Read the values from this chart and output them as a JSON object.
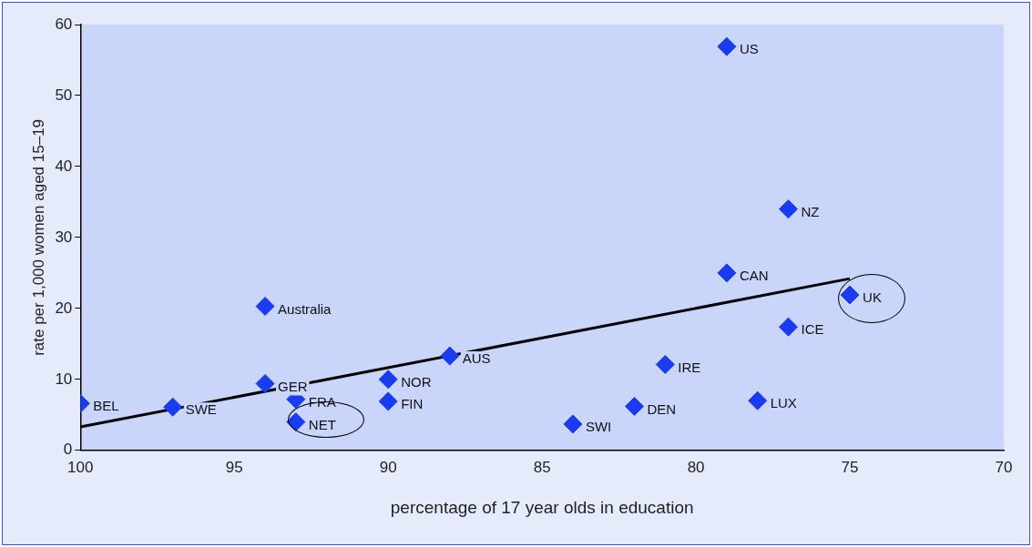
{
  "chart_data": {
    "type": "scatter",
    "xlabel": "percentage of 17 year olds in education",
    "ylabel": "rate per 1,000 women aged 15–19",
    "xlim": [
      100,
      70
    ],
    "xticks": [
      100,
      95,
      90,
      85,
      80,
      75,
      70
    ],
    "ylim": [
      0,
      60
    ],
    "yticks": [
      0,
      10,
      20,
      30,
      40,
      50,
      60
    ],
    "grid": false,
    "legend": false,
    "series": [
      {
        "marker": "diamond",
        "color": "#1a3cf0",
        "x": [
          100,
          97,
          94,
          94,
          93,
          93,
          90,
          90,
          88,
          84,
          82,
          81,
          79,
          79,
          77,
          77,
          78,
          75
        ],
        "values": [
          6.6,
          6.1,
          20.3,
          9.4,
          7.2,
          4.0,
          10,
          6.9,
          13.3,
          3.7,
          6.2,
          12.1,
          56.9,
          25,
          34,
          17.4,
          7,
          21.9
        ]
      },
      {
        "type": "line",
        "color": "#000000",
        "x": [
          100,
          75
        ],
        "values": [
          3.3,
          24.2
        ]
      }
    ],
    "annotations": [
      {
        "text": "BEL",
        "x": 100,
        "y": 6.6
      },
      {
        "text": "SWE",
        "x": 97,
        "y": 6.1
      },
      {
        "text": "Australia",
        "x": 94,
        "y": 20.3
      },
      {
        "text": "GER",
        "x": 94,
        "y": 9.4
      },
      {
        "text": "FRA",
        "x": 93,
        "y": 7.2
      },
      {
        "text": "NET",
        "x": 93,
        "y": 4.0
      },
      {
        "text": "NOR",
        "x": 90,
        "y": 10
      },
      {
        "text": "FIN",
        "x": 90,
        "y": 6.9
      },
      {
        "text": "AUS",
        "x": 88,
        "y": 13.3
      },
      {
        "text": "SWI",
        "x": 84,
        "y": 3.7
      },
      {
        "text": "DEN",
        "x": 82,
        "y": 6.2
      },
      {
        "text": "IRE",
        "x": 81,
        "y": 12.1
      },
      {
        "text": "US",
        "x": 79,
        "y": 56.9
      },
      {
        "text": "CAN",
        "x": 79,
        "y": 25
      },
      {
        "text": "NZ",
        "x": 77,
        "y": 34
      },
      {
        "text": "ICE",
        "x": 77,
        "y": 17.4
      },
      {
        "text": "LUX",
        "x": 78,
        "y": 7
      },
      {
        "text": "UK",
        "x": 75,
        "y": 21.9
      }
    ]
  }
}
